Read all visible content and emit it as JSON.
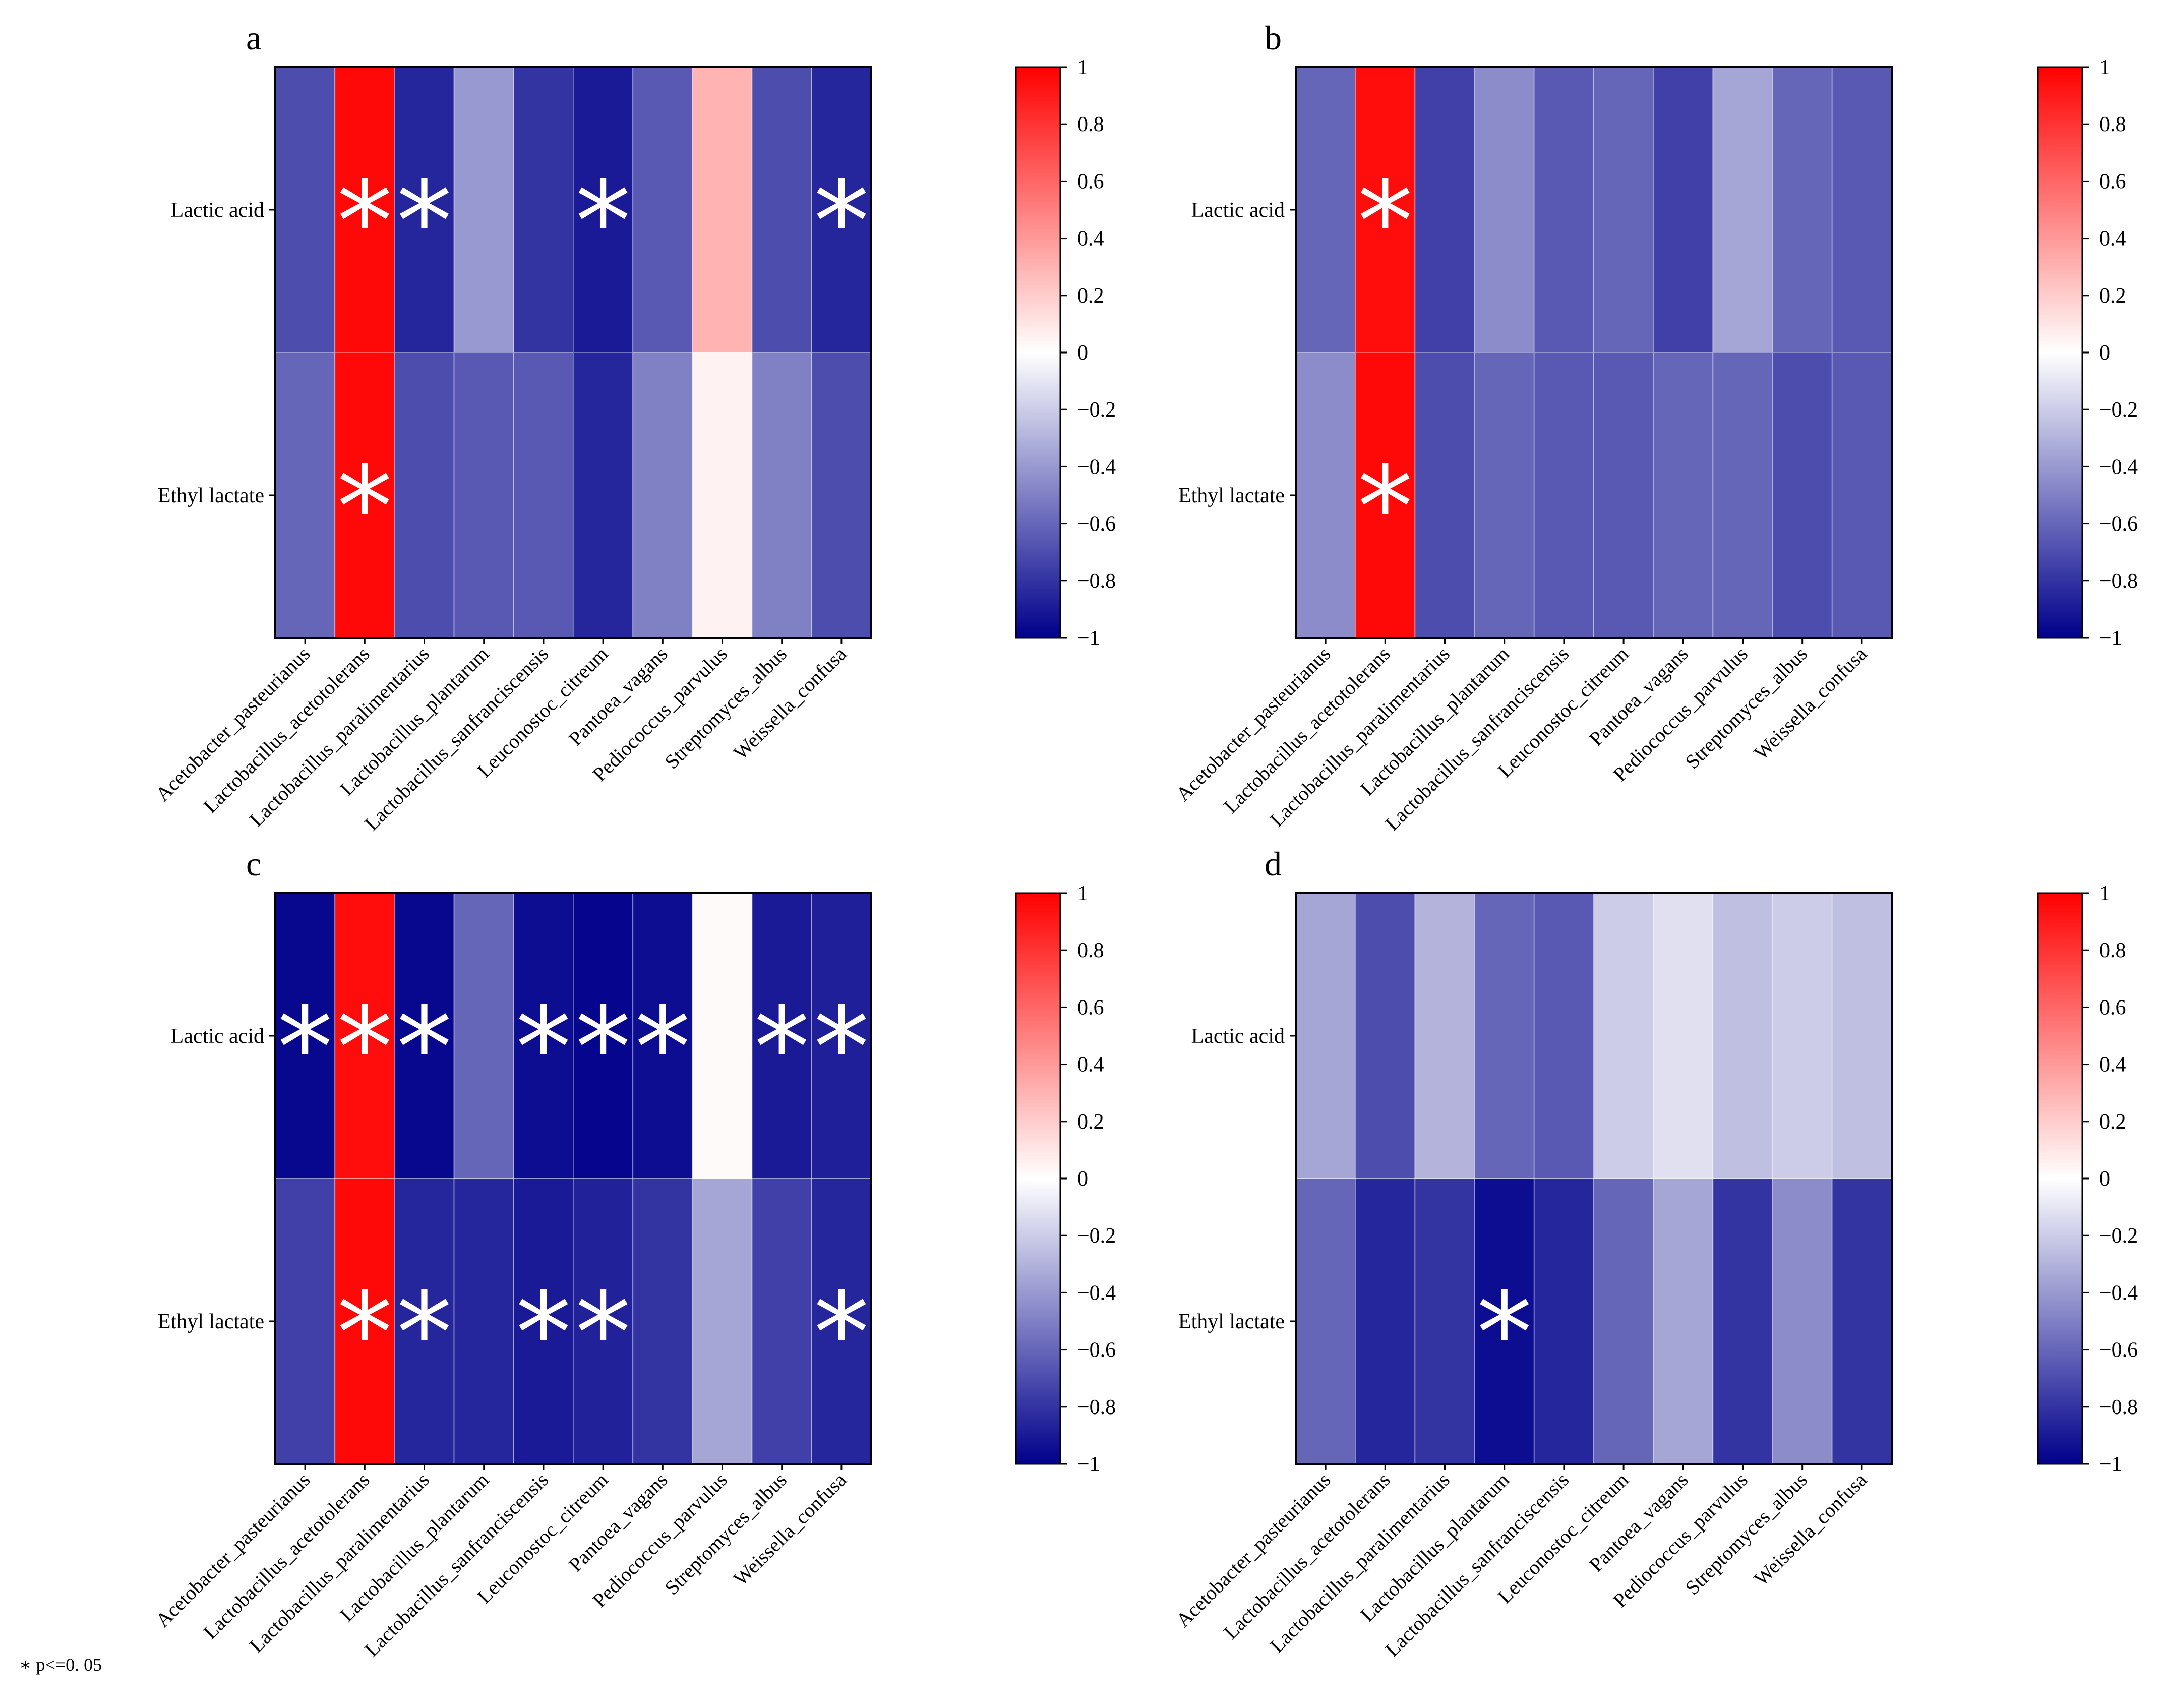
{
  "footnote": "∗ p<=0. 05",
  "colorbar": {
    "ticks": [
      "1",
      "0.8",
      "0.6",
      "0.4",
      "0.2",
      "0",
      "−0.2",
      "−0.4",
      "−0.6",
      "−0.8",
      "−1"
    ],
    "range": [
      -1,
      1
    ],
    "colors": {
      "negative": "#00008b",
      "zero": "#ffffff",
      "positive": "#ff0000"
    }
  },
  "chart_data": [
    {
      "type": "heatmap",
      "title": "a",
      "rows": [
        "Lactic acid",
        "Ethyl lactate"
      ],
      "columns": [
        "Acetobacter_pasteurianus",
        "Lactobacillus_acetotolerans",
        "Lactobacillus_paralimentarius",
        "Lactobacillus_plantarum",
        "Lactobacillus_sanfranciscensis",
        "Leuconostoc_citreum",
        "Pantoea_vagans",
        "Pediococcus_parvulus",
        "Streptomyces_albus",
        "Weissella_confusa"
      ],
      "values": [
        [
          -0.7,
          0.97,
          -0.85,
          -0.4,
          -0.8,
          -0.9,
          -0.65,
          0.3,
          -0.7,
          -0.85
        ],
        [
          -0.6,
          0.97,
          -0.7,
          -0.65,
          -0.65,
          -0.85,
          -0.5,
          0.05,
          -0.5,
          -0.7
        ]
      ],
      "significant": [
        [
          false,
          true,
          true,
          false,
          false,
          true,
          false,
          false,
          false,
          true
        ],
        [
          false,
          true,
          false,
          false,
          false,
          false,
          false,
          false,
          false,
          false
        ]
      ],
      "zlim": [
        -1,
        1
      ]
    },
    {
      "type": "heatmap",
      "title": "b",
      "rows": [
        "Lactic acid",
        "Ethyl lactate"
      ],
      "columns": [
        "Acetobacter_pasteurianus",
        "Lactobacillus_acetotolerans",
        "Lactobacillus_paralimentarius",
        "Lactobacillus_plantarum",
        "Lactobacillus_sanfranciscensis",
        "Leuconostoc_citreum",
        "Pantoea_vagans",
        "Pediococcus_parvulus",
        "Streptomyces_albus",
        "Weissella_confusa"
      ],
      "values": [
        [
          -0.6,
          0.95,
          -0.75,
          -0.45,
          -0.65,
          -0.6,
          -0.75,
          -0.35,
          -0.6,
          -0.65
        ],
        [
          -0.45,
          0.97,
          -0.7,
          -0.6,
          -0.65,
          -0.65,
          -0.6,
          -0.6,
          -0.7,
          -0.65
        ]
      ],
      "significant": [
        [
          false,
          true,
          false,
          false,
          false,
          false,
          false,
          false,
          false,
          false
        ],
        [
          false,
          true,
          false,
          false,
          false,
          false,
          false,
          false,
          false,
          false
        ]
      ],
      "zlim": [
        -1,
        1
      ]
    },
    {
      "type": "heatmap",
      "title": "c",
      "rows": [
        "Lactic acid",
        "Ethyl lactate"
      ],
      "columns": [
        "Acetobacter_pasteurianus",
        "Lactobacillus_acetotolerans",
        "Lactobacillus_paralimentarius",
        "Lactobacillus_plantarum",
        "Lactobacillus_sanfranciscensis",
        "Leuconostoc_citreum",
        "Pantoea_vagans",
        "Pediococcus_parvulus",
        "Streptomyces_albus",
        "Weissella_confusa"
      ],
      "values": [
        [
          -0.97,
          0.95,
          -0.97,
          -0.6,
          -0.95,
          -0.98,
          -0.95,
          0.02,
          -0.9,
          -0.88
        ],
        [
          -0.75,
          0.97,
          -0.85,
          -0.85,
          -0.9,
          -0.87,
          -0.8,
          -0.35,
          -0.75,
          -0.85
        ]
      ],
      "significant": [
        [
          true,
          true,
          true,
          false,
          true,
          true,
          true,
          false,
          true,
          true
        ],
        [
          false,
          true,
          true,
          false,
          true,
          true,
          false,
          false,
          false,
          true
        ]
      ],
      "zlim": [
        -1,
        1
      ]
    },
    {
      "type": "heatmap",
      "title": "d",
      "rows": [
        "Lactic acid",
        "Ethyl lactate"
      ],
      "columns": [
        "Acetobacter_pasteurianus",
        "Lactobacillus_acetotolerans",
        "Lactobacillus_paralimentarius",
        "Lactobacillus_plantarum",
        "Lactobacillus_sanfranciscensis",
        "Leuconostoc_citreum",
        "Pantoea_vagans",
        "Pediococcus_parvulus",
        "Streptomyces_albus",
        "Weissella_confusa"
      ],
      "values": [
        [
          -0.35,
          -0.7,
          -0.3,
          -0.6,
          -0.65,
          -0.2,
          -0.12,
          -0.25,
          -0.2,
          -0.25
        ],
        [
          -0.6,
          -0.85,
          -0.8,
          -0.95,
          -0.85,
          -0.6,
          -0.35,
          -0.8,
          -0.45,
          -0.8
        ]
      ],
      "significant": [
        [
          false,
          false,
          false,
          false,
          false,
          false,
          false,
          false,
          false,
          false
        ],
        [
          false,
          false,
          false,
          true,
          false,
          false,
          false,
          false,
          false,
          false
        ]
      ],
      "zlim": [
        -1,
        1
      ]
    }
  ]
}
